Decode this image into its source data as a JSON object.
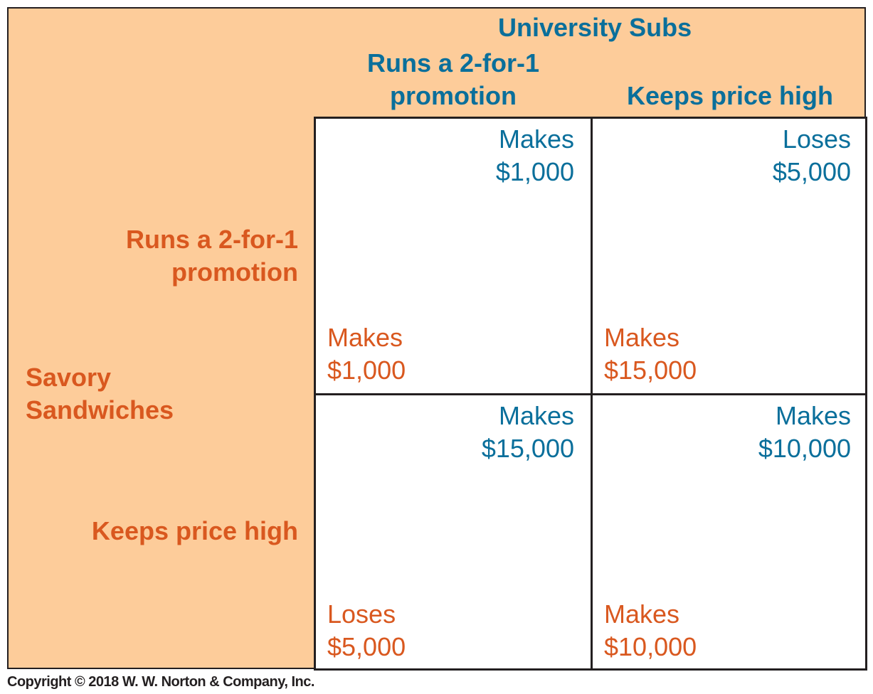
{
  "column_player": "University Subs",
  "row_player": "Savory Sandwiches",
  "column_strategies": [
    {
      "line1": "Runs a 2-for-1",
      "line2": "promotion"
    },
    {
      "line1": "Keeps price high"
    }
  ],
  "row_strategies": [
    {
      "line1": "Runs a 2-for-1",
      "line2": "promotion"
    },
    {
      "line1": "Keeps price high"
    }
  ],
  "row_player_lines": [
    "Savory",
    "Sandwiches"
  ],
  "payoffs": [
    [
      {
        "col_verb": "Makes",
        "col_amount": "$1,000",
        "row_verb": "Makes",
        "row_amount": "$1,000"
      },
      {
        "col_verb": "Loses",
        "col_amount": "$5,000",
        "row_verb": "Makes",
        "row_amount": "$15,000"
      }
    ],
    [
      {
        "col_verb": "Makes",
        "col_amount": "$15,000",
        "row_verb": "Loses",
        "row_amount": "$5,000"
      },
      {
        "col_verb": "Makes",
        "col_amount": "$10,000",
        "row_verb": "Makes",
        "row_amount": "$10,000"
      }
    ]
  ],
  "colors": {
    "column_player": "#0a6f9b",
    "row_player": "#d9581f",
    "header_fill": "#fdcc9a"
  },
  "copyright": "Copyright © 2018 W. W. Norton & Company, Inc."
}
